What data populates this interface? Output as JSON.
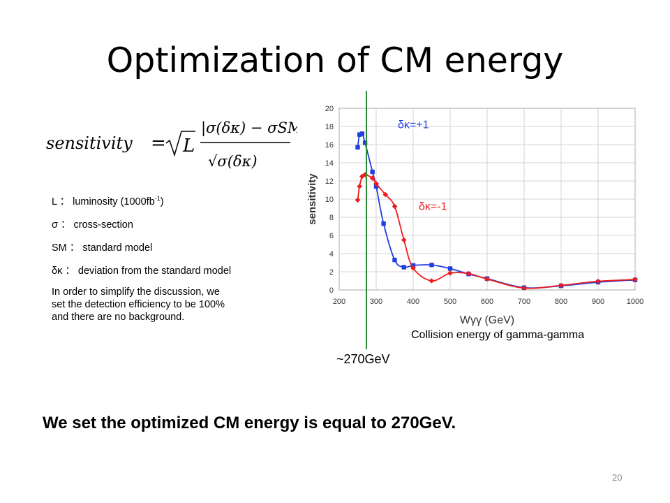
{
  "slide": {
    "title": "Optimization of CM energy",
    "page_number": "20",
    "conclusion": "We set the optimized CM energy is equal to 270GeV."
  },
  "formula": {
    "lhs": "sensitivity",
    "equals": "=",
    "sqrt_arg": "L",
    "numerator": "|σ(δκ) − σSM|",
    "denominator": "√σ(δκ)"
  },
  "definitions": [
    {
      "symbol": "L",
      "sep": "：",
      "text": "luminosity (1000fb",
      "sup": "-1",
      "tail": ")"
    },
    {
      "symbol": "σ",
      "sep": "：",
      "text": "cross-section",
      "sup": "",
      "tail": ""
    },
    {
      "symbol": "SM",
      "sep": "：",
      "text": "standard model",
      "sup": "",
      "tail": ""
    },
    {
      "symbol": "δκ",
      "sep": "：",
      "text": "deviation from the standard model",
      "sup": "",
      "tail": ""
    }
  ],
  "note": {
    "line1": "In order to simplify the discussion, we",
    "line2": "set the detection efficiency to be 100%",
    "line3": "and there are no background."
  },
  "annotations": {
    "collision_label": "Collision energy of gamma-gamma",
    "energy_marker": "~270GeV",
    "energy_marker_value": 270
  },
  "colors": {
    "series_blue": "#1f3fe0",
    "series_red": "#ef1c1c",
    "marker_line": "#2e8b3a",
    "grid": "#c8c8c8",
    "page_number": "#8c8c8c"
  },
  "chart_data": {
    "type": "line",
    "title": "",
    "xlabel": "Wγγ (GeV)",
    "ylabel": "sensitivity",
    "xlim": [
      200,
      1000
    ],
    "ylim": [
      0,
      20
    ],
    "xticks": [
      200,
      300,
      400,
      500,
      600,
      700,
      800,
      900,
      1000
    ],
    "yticks": [
      0,
      2,
      4,
      6,
      8,
      10,
      12,
      14,
      16,
      18,
      20
    ],
    "grid": true,
    "series": [
      {
        "name": "δκ=+1",
        "color": "#1f3fe0",
        "marker": "square",
        "x": [
          250,
          255,
          262,
          270,
          290,
          300,
          320,
          350,
          375,
          400,
          450,
          500,
          550,
          600,
          700,
          800,
          900,
          1000
        ],
        "y": [
          15.7,
          17.1,
          17.2,
          16.2,
          13.0,
          11.4,
          7.3,
          3.3,
          2.5,
          2.7,
          2.75,
          2.35,
          1.75,
          1.25,
          0.25,
          0.45,
          0.85,
          1.1
        ]
      },
      {
        "name": "δκ=-1",
        "color": "#ef1c1c",
        "marker": "diamond",
        "x": [
          250,
          255,
          262,
          270,
          290,
          300,
          325,
          350,
          375,
          400,
          450,
          500,
          550,
          600,
          700,
          800,
          900,
          1000
        ],
        "y": [
          9.9,
          11.4,
          12.5,
          12.7,
          12.3,
          11.7,
          10.5,
          9.2,
          5.5,
          2.4,
          1.0,
          1.85,
          1.8,
          1.2,
          0.2,
          0.5,
          0.95,
          1.15
        ]
      }
    ]
  }
}
